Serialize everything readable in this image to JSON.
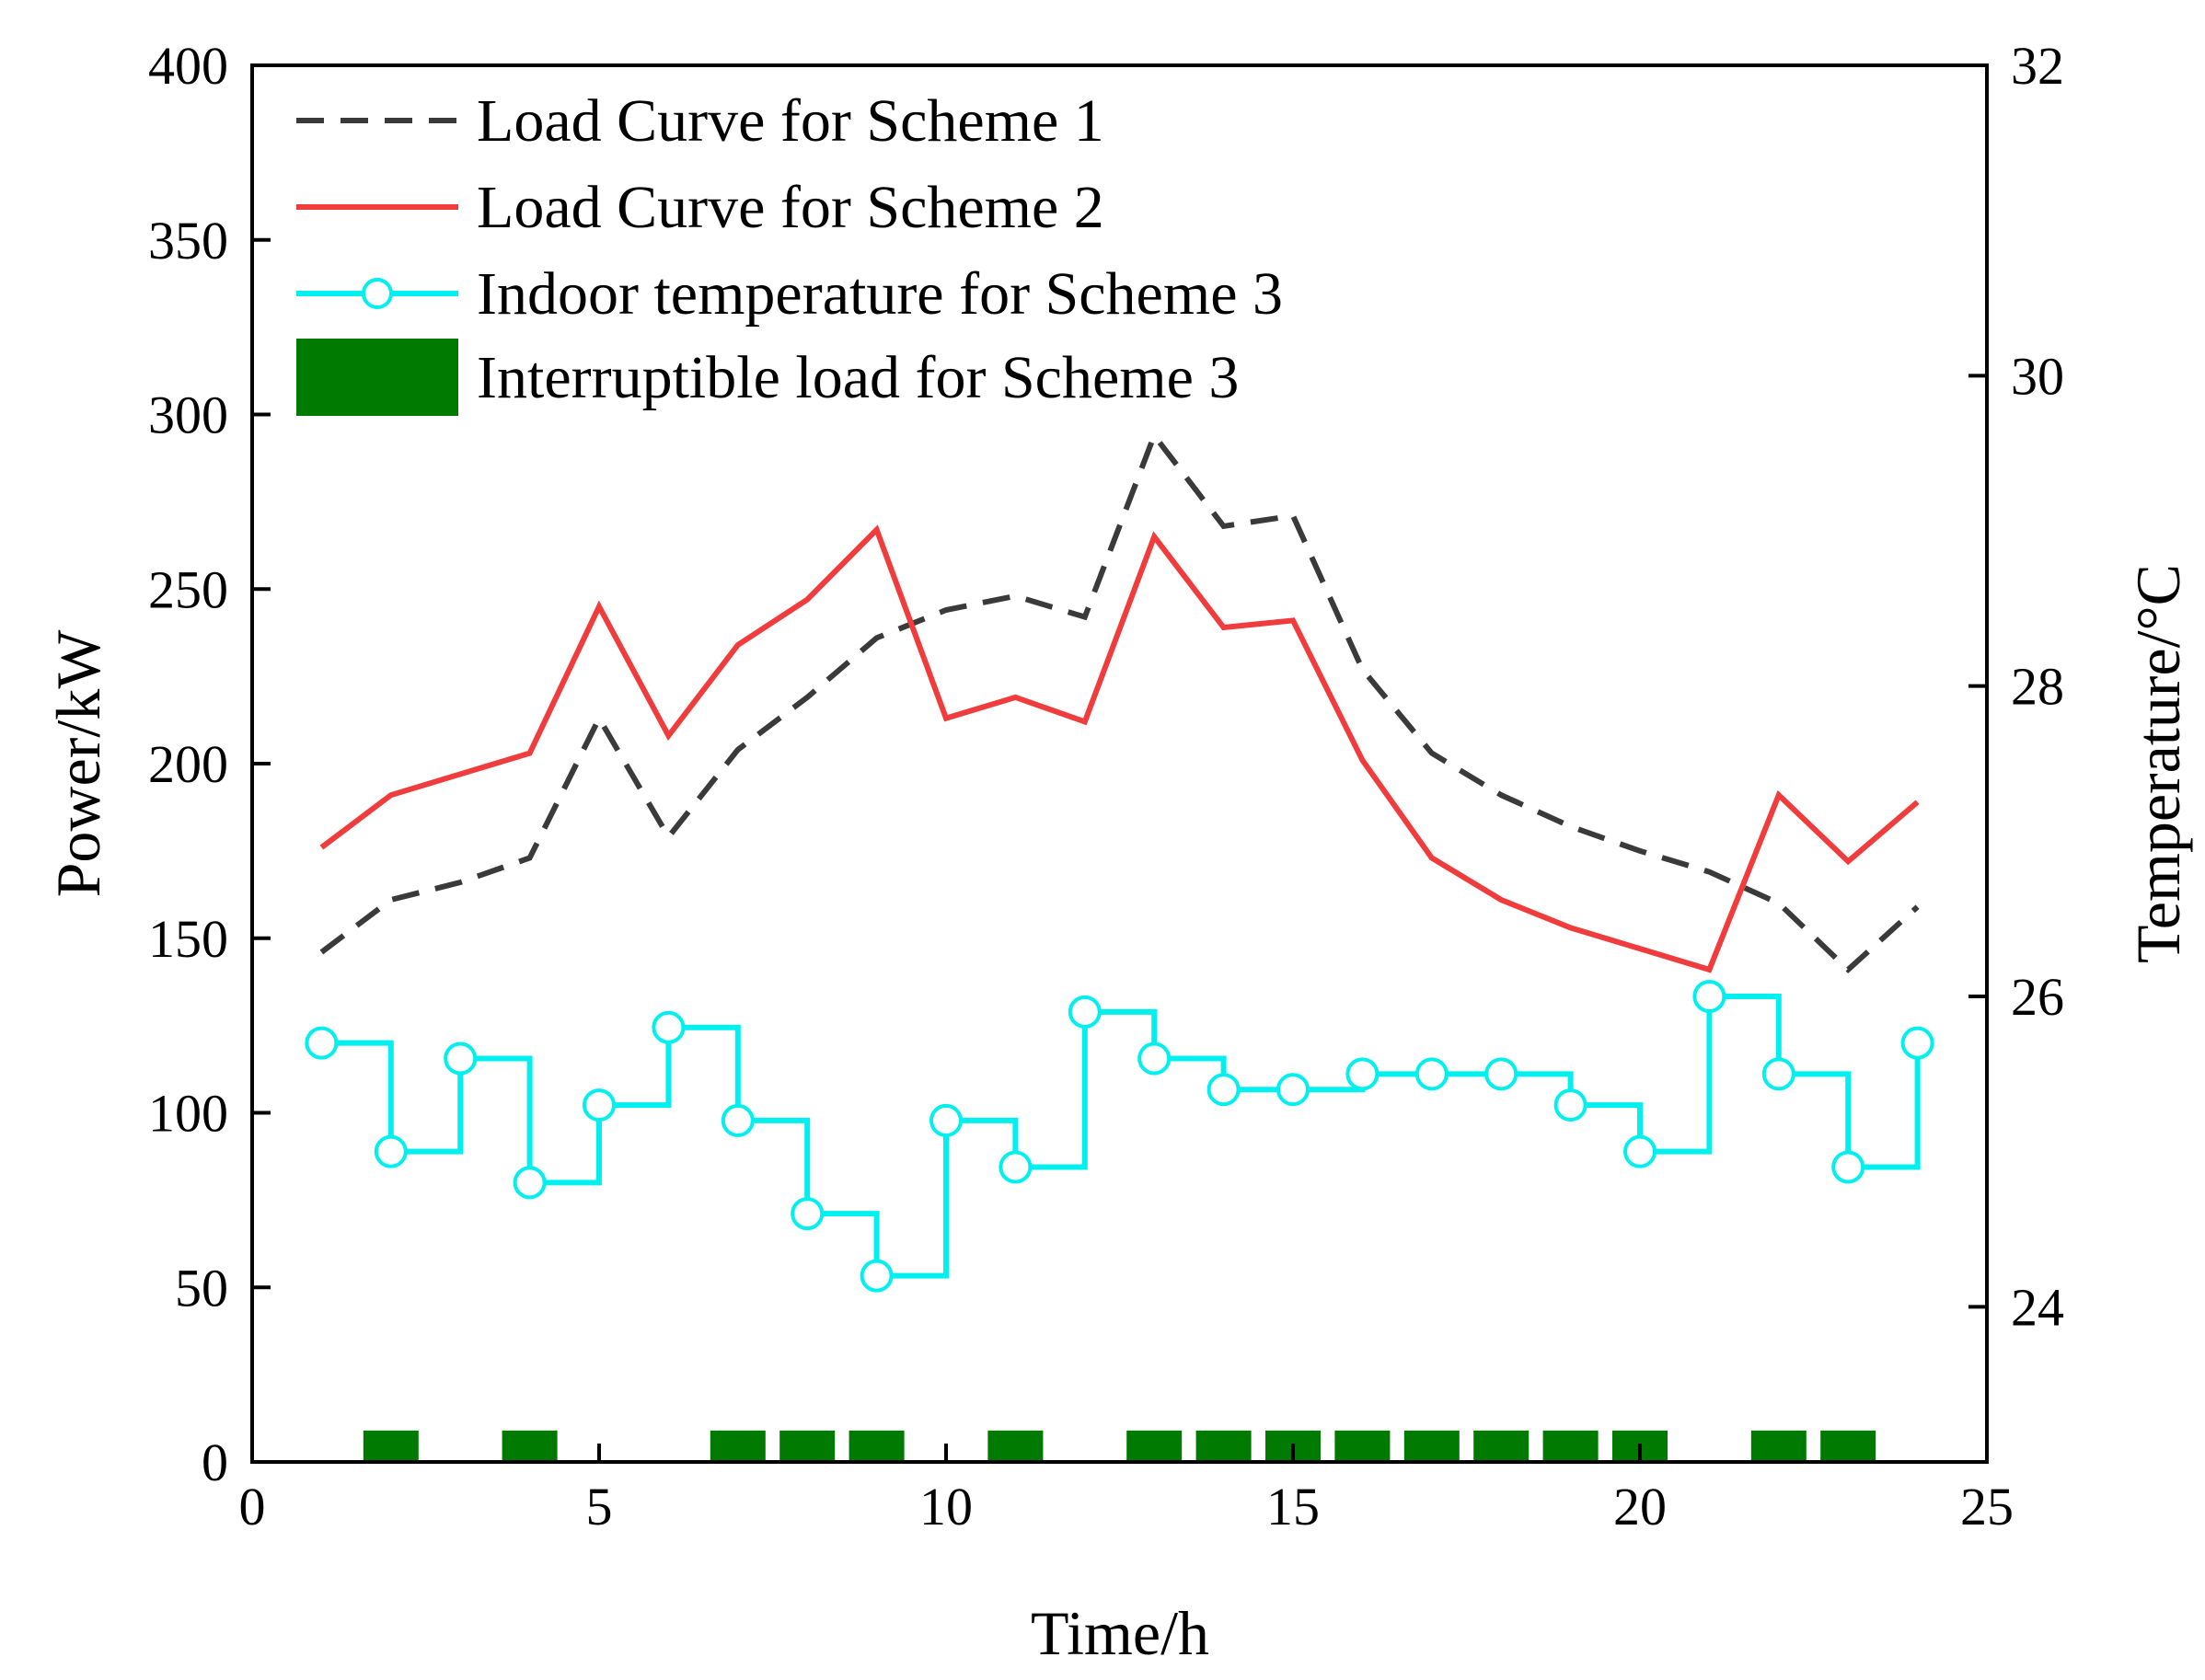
{
  "chart_data": {
    "type": "line",
    "title": "",
    "xlabel": "Time/h",
    "ylabel": "Power/kW",
    "y2label": "Temperature/°C",
    "xlim": [
      0,
      25
    ],
    "ylim": [
      0,
      400
    ],
    "y2lim": [
      23,
      32
    ],
    "xticks": [
      0,
      5,
      10,
      15,
      20,
      25
    ],
    "yticks": [
      0,
      50,
      100,
      150,
      200,
      250,
      300,
      350,
      400
    ],
    "y2ticks": [
      24,
      26,
      28,
      30,
      32
    ],
    "legend_position": "top-left",
    "grid": false,
    "series": [
      {
        "name": "Load Curve for Scheme 1",
        "axis": "left",
        "style": "dashed",
        "color": "#3a3a3a",
        "x": [
          1,
          2,
          3,
          4,
          5,
          6,
          7,
          8,
          9,
          10,
          11,
          12,
          13,
          14,
          15,
          16,
          17,
          18,
          19,
          20,
          21,
          22,
          23,
          24
        ],
        "values": [
          146,
          161,
          166,
          173,
          213,
          179,
          204,
          219,
          236,
          244,
          248,
          242,
          294,
          268,
          271,
          227,
          203,
          191,
          182,
          175,
          169,
          160,
          141,
          159
        ]
      },
      {
        "name": "Load Curve for Scheme 2",
        "axis": "left",
        "style": "solid",
        "color": "#f03c3c",
        "x": [
          1,
          2,
          3,
          4,
          5,
          6,
          7,
          8,
          9,
          10,
          11,
          12,
          13,
          14,
          15,
          16,
          17,
          18,
          19,
          20,
          21,
          22,
          23,
          24
        ],
        "values": [
          176,
          191,
          197,
          203,
          245,
          208,
          234,
          247,
          267,
          213,
          219,
          212,
          265,
          239,
          241,
          201,
          173,
          161,
          153,
          147,
          141,
          191,
          172,
          189
        ]
      },
      {
        "name": "Indoor temperature for Scheme 3",
        "axis": "right",
        "style": "step-markers",
        "color": "#00f0f0",
        "x": [
          1,
          2,
          3,
          4,
          5,
          6,
          7,
          8,
          9,
          10,
          11,
          12,
          13,
          14,
          15,
          16,
          17,
          18,
          19,
          20,
          21,
          22,
          23,
          24
        ],
        "values": [
          25.7,
          25.0,
          25.6,
          24.8,
          25.3,
          25.8,
          25.2,
          24.6,
          24.2,
          25.2,
          24.9,
          25.9,
          25.6,
          25.4,
          25.4,
          25.5,
          25.5,
          25.5,
          25.3,
          25.0,
          26.0,
          25.5,
          24.9,
          25.7
        ]
      },
      {
        "name": "Interruptible load for Scheme 3",
        "axis": "left",
        "style": "bar",
        "color": "#007a00",
        "x": [
          2,
          4,
          7,
          8,
          9,
          11,
          13,
          14,
          15,
          16,
          17,
          18,
          19,
          20,
          22,
          23
        ],
        "values": [
          9,
          9,
          9,
          9,
          9,
          9,
          9,
          9,
          9,
          9,
          9,
          9,
          9,
          9,
          9,
          9
        ]
      }
    ]
  }
}
